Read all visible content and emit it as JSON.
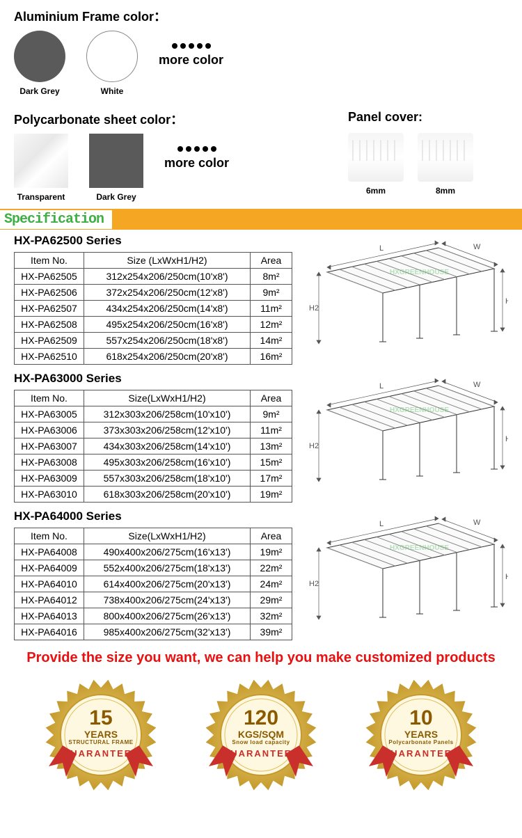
{
  "frame": {
    "title": "Aluminium Frame color：",
    "swatches": [
      {
        "label": "Dark Grey",
        "fill": "#5a5a5a"
      },
      {
        "label": "White",
        "fill": "#ffffff",
        "stroke": "#888"
      }
    ],
    "more": "more color"
  },
  "sheet": {
    "title": "Polycarbonate sheet color：",
    "swatches": [
      {
        "label": "Transparent",
        "bg": "linear-gradient(135deg,#f8f8f8,#e8e8e8 40%,#fff 60%,#e8e8e8)"
      },
      {
        "label": "Dark Grey",
        "fill": "#5a5a5a"
      }
    ],
    "more": "more color"
  },
  "panel": {
    "title": "Panel cover:",
    "items": [
      "6mm",
      "8mm"
    ]
  },
  "spec_heading": "Specification",
  "series": [
    {
      "title": "HX-PA62500 Series",
      "headers": [
        "Item No.",
        "Size (LxWxH1/H2)",
        "Area"
      ],
      "rows": [
        [
          "HX-PA62505",
          "312x254x206/250cm(10'x8')",
          "8m²"
        ],
        [
          "HX-PA62506",
          "372x254x206/250cm(12'x8')",
          "9m²"
        ],
        [
          "HX-PA62507",
          "434x254x206/250cm(14'x8')",
          "11m²"
        ],
        [
          "HX-PA62508",
          "495x254x206/250cm(16'x8')",
          "12m²"
        ],
        [
          "HX-PA62509",
          "557x254x206/250cm(18'x8')",
          "14m²"
        ],
        [
          "HX-PA62510",
          "618x254x206/250cm(20'x8')",
          "16m²"
        ]
      ]
    },
    {
      "title": "HX-PA63000 Series",
      "headers": [
        "Item No.",
        "Size(LxWxH1/H2)",
        "Area"
      ],
      "rows": [
        [
          "HX-PA63005",
          "312x303x206/258cm(10'x10')",
          "9m²"
        ],
        [
          "HX-PA63006",
          "373x303x206/258cm(12'x10')",
          "11m²"
        ],
        [
          "HX-PA63007",
          "434x303x206/258cm(14'x10')",
          "13m²"
        ],
        [
          "HX-PA63008",
          "495x303x206/258cm(16'x10')",
          "15m²"
        ],
        [
          "HX-PA63009",
          "557x303x206/258cm(18'x10')",
          "17m²"
        ],
        [
          "HX-PA63010",
          "618x303x206/258cm(20'x10')",
          "19m²"
        ]
      ]
    },
    {
      "title": "HX-PA64000 Series",
      "headers": [
        "Item No.",
        "Size(LxWxH1/H2)",
        "Area"
      ],
      "rows": [
        [
          "HX-PA64008",
          "490x400x206/275cm(16'x13')",
          "19m²"
        ],
        [
          "HX-PA64009",
          "552x400x206/275cm(18'x13')",
          "22m²"
        ],
        [
          "HX-PA64010",
          "614x400x206/275cm(20'x13')",
          "24m²"
        ],
        [
          "HX-PA64012",
          "738x400x206/275cm(24'x13')",
          "29m²"
        ],
        [
          "HX-PA64013",
          "800x400x206/275cm(26'x13')",
          "32m²"
        ],
        [
          "HX-PA64016",
          "985x400x206/275cm(32'x13')",
          "39m²"
        ]
      ]
    }
  ],
  "custom_text": "Provide the size you want, we can help you make customized products",
  "badges": [
    {
      "big": "15",
      "mid": "YEARS",
      "small": "STRUCTURAL FRAME",
      "guar": "GUARANTEED"
    },
    {
      "big": "120",
      "mid": "KGS/SQM",
      "small": "Snow load capacity",
      "guar": "GUARANTEED"
    },
    {
      "big": "10",
      "mid": "YEARS",
      "small": "Polycarbonate Panels",
      "guar": "GUARANTEED"
    }
  ],
  "colors": {
    "spec_bar": "#f5a623",
    "spec_text": "#3cb043",
    "custom": "#e91010",
    "badge_gold_dark": "#c49a2e",
    "badge_gold_light": "#f4d97a",
    "badge_ribbon": "#c9302c"
  }
}
